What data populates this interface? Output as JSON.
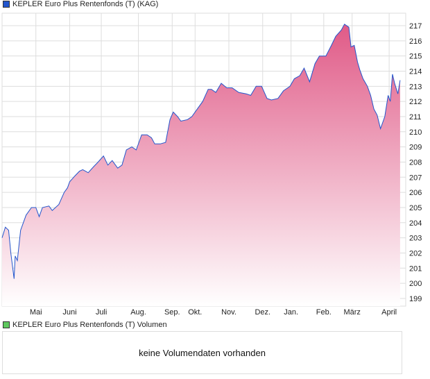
{
  "colors": {
    "line": "#2255cc",
    "fill_top": "#e05a87",
    "fill_bottom": "#ffffff",
    "volume_swatch": "#5ec85e",
    "grid": "#dddddd"
  },
  "chart_data": {
    "type": "area",
    "title": "KEPLER Euro Plus Rentenfonds (T) (KAG)",
    "xlabel": "",
    "ylabel": "",
    "x_unit": "days since start (approx., 1 year)",
    "ylim": [
      198.5,
      218.2
    ],
    "yticks": [
      199,
      200,
      201,
      202,
      203,
      204,
      205,
      206,
      207,
      208,
      209,
      210,
      211,
      212,
      213,
      214,
      215,
      216,
      217
    ],
    "xticks": [
      {
        "label": "Mai",
        "day": 31
      },
      {
        "label": "Juni",
        "day": 62
      },
      {
        "label": "Juli",
        "day": 91
      },
      {
        "label": "Aug.",
        "day": 125
      },
      {
        "label": "Sep.",
        "day": 156
      },
      {
        "label": "Okt.",
        "day": 177
      },
      {
        "label": "Nov.",
        "day": 208
      },
      {
        "label": "Dez.",
        "day": 239
      },
      {
        "label": "Jan.",
        "day": 265
      },
      {
        "label": "Feb.",
        "day": 295
      },
      {
        "label": "März",
        "day": 321
      },
      {
        "label": "April",
        "day": 355
      }
    ],
    "xlim": [
      0,
      367
    ],
    "grid": true,
    "points": [
      [
        0,
        203
      ],
      [
        3,
        203.7
      ],
      [
        6,
        203.5
      ],
      [
        8,
        202
      ],
      [
        11,
        200.3
      ],
      [
        12,
        201.8
      ],
      [
        14,
        201.5
      ],
      [
        17,
        203.5
      ],
      [
        22,
        204.5
      ],
      [
        27,
        205
      ],
      [
        31,
        205
      ],
      [
        34,
        204.4
      ],
      [
        37,
        205
      ],
      [
        43,
        205.1
      ],
      [
        46,
        204.8
      ],
      [
        52,
        205.2
      ],
      [
        57,
        206
      ],
      [
        60,
        206.3
      ],
      [
        62,
        206.7
      ],
      [
        67,
        207.1
      ],
      [
        71,
        207.4
      ],
      [
        74,
        207.5
      ],
      [
        79,
        207.3
      ],
      [
        84,
        207.7
      ],
      [
        88,
        208
      ],
      [
        93,
        208.4
      ],
      [
        97,
        207.8
      ],
      [
        101,
        208.1
      ],
      [
        106,
        207.6
      ],
      [
        110,
        207.8
      ],
      [
        114,
        208.8
      ],
      [
        119,
        209
      ],
      [
        123,
        208.8
      ],
      [
        128,
        209.8
      ],
      [
        133,
        209.8
      ],
      [
        137,
        209.6
      ],
      [
        140,
        209.2
      ],
      [
        145,
        209.2
      ],
      [
        150,
        209.3
      ],
      [
        154,
        210.8
      ],
      [
        157,
        211.3
      ],
      [
        161,
        211
      ],
      [
        164,
        210.7
      ],
      [
        170,
        210.8
      ],
      [
        174,
        211
      ],
      [
        179,
        211.5
      ],
      [
        184,
        212
      ],
      [
        189,
        212.8
      ],
      [
        192,
        212.8
      ],
      [
        196,
        212.6
      ],
      [
        201,
        213.2
      ],
      [
        206,
        212.9
      ],
      [
        211,
        212.9
      ],
      [
        217,
        212.6
      ],
      [
        224,
        212.5
      ],
      [
        228,
        212.4
      ],
      [
        233,
        213
      ],
      [
        238,
        213
      ],
      [
        243,
        212.2
      ],
      [
        247,
        212.1
      ],
      [
        253,
        212.2
      ],
      [
        258,
        212.7
      ],
      [
        264,
        213
      ],
      [
        268,
        213.5
      ],
      [
        273,
        213.7
      ],
      [
        277,
        214.2
      ],
      [
        282,
        213.3
      ],
      [
        287,
        214.5
      ],
      [
        291,
        215
      ],
      [
        297,
        215
      ],
      [
        302,
        215.7
      ],
      [
        306,
        216.3
      ],
      [
        311,
        216.7
      ],
      [
        314,
        217.1
      ],
      [
        318,
        216.9
      ],
      [
        320,
        215.6
      ],
      [
        323,
        215.7
      ],
      [
        326,
        214.6
      ],
      [
        328,
        214.1
      ],
      [
        331,
        213.5
      ],
      [
        335,
        213
      ],
      [
        338,
        212.4
      ],
      [
        341,
        211.5
      ],
      [
        344,
        211.1
      ],
      [
        347,
        210.2
      ],
      [
        351,
        211
      ],
      [
        354,
        212.4
      ],
      [
        356,
        212
      ],
      [
        358,
        213.8
      ],
      [
        360,
        213.2
      ],
      [
        363,
        212.5
      ],
      [
        365,
        213.4
      ]
    ],
    "legend": "top-left"
  },
  "volume": {
    "legend": "KEPLER Euro Plus Rentenfonds (T) Volumen",
    "message": "keine Volumendaten vorhanden"
  }
}
